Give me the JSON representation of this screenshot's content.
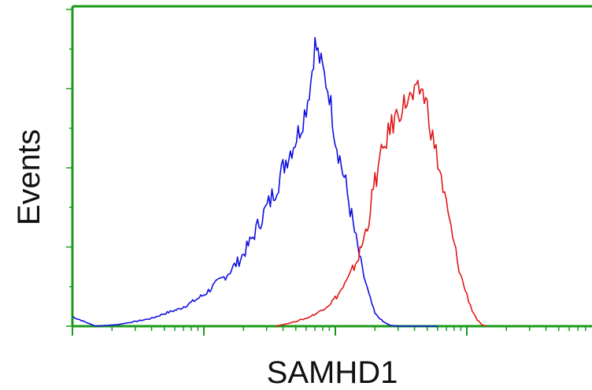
{
  "chart_data": {
    "type": "line",
    "title": "",
    "xlabel": "SAMHD1",
    "ylabel": "Events",
    "x_scale": "log",
    "xlim": [
      1,
      10000
    ],
    "ylim": [
      0,
      100
    ],
    "grid": false,
    "legend": "none",
    "colors": {
      "axis": "#1a9a1a",
      "series_1": "#1010e0",
      "series_2": "#e01818",
      "background": "#ffffff"
    },
    "series": [
      {
        "color": "#1010e0",
        "x": [
          1,
          1.5,
          2.2,
          3,
          4,
          5,
          6.5,
          8,
          10,
          12,
          15,
          19,
          23,
          27,
          32,
          37,
          42,
          48,
          55,
          60,
          65,
          70,
          80,
          90,
          100,
          120,
          140,
          160,
          180,
          200,
          230,
          260,
          300,
          350,
          400,
          500,
          600
        ],
        "values": [
          3,
          0,
          0.5,
          1.5,
          2.5,
          4,
          5.5,
          7.5,
          10,
          13,
          16.5,
          21.5,
          27.5,
          34,
          40,
          46.5,
          53,
          58,
          64,
          70,
          78,
          90,
          82,
          74,
          60,
          45,
          30,
          18,
          10,
          4,
          1.5,
          0.3,
          0,
          0,
          0,
          0,
          0
        ]
      },
      {
        "color": "#e01818",
        "x": [
          35,
          45,
          60,
          75,
          90,
          105,
          125,
          150,
          175,
          200,
          230,
          260,
          300,
          350,
          400,
          450,
          500,
          550,
          620,
          700,
          800,
          900,
          1000,
          1100,
          1200,
          1300,
          1400
        ],
        "values": [
          0,
          1,
          2.5,
          4.5,
          7,
          10,
          15,
          22,
          32,
          46,
          56,
          63,
          68,
          72,
          73,
          76,
          70,
          60,
          50,
          38,
          26,
          16,
          10,
          5,
          2,
          0.5,
          0
        ]
      }
    ]
  }
}
